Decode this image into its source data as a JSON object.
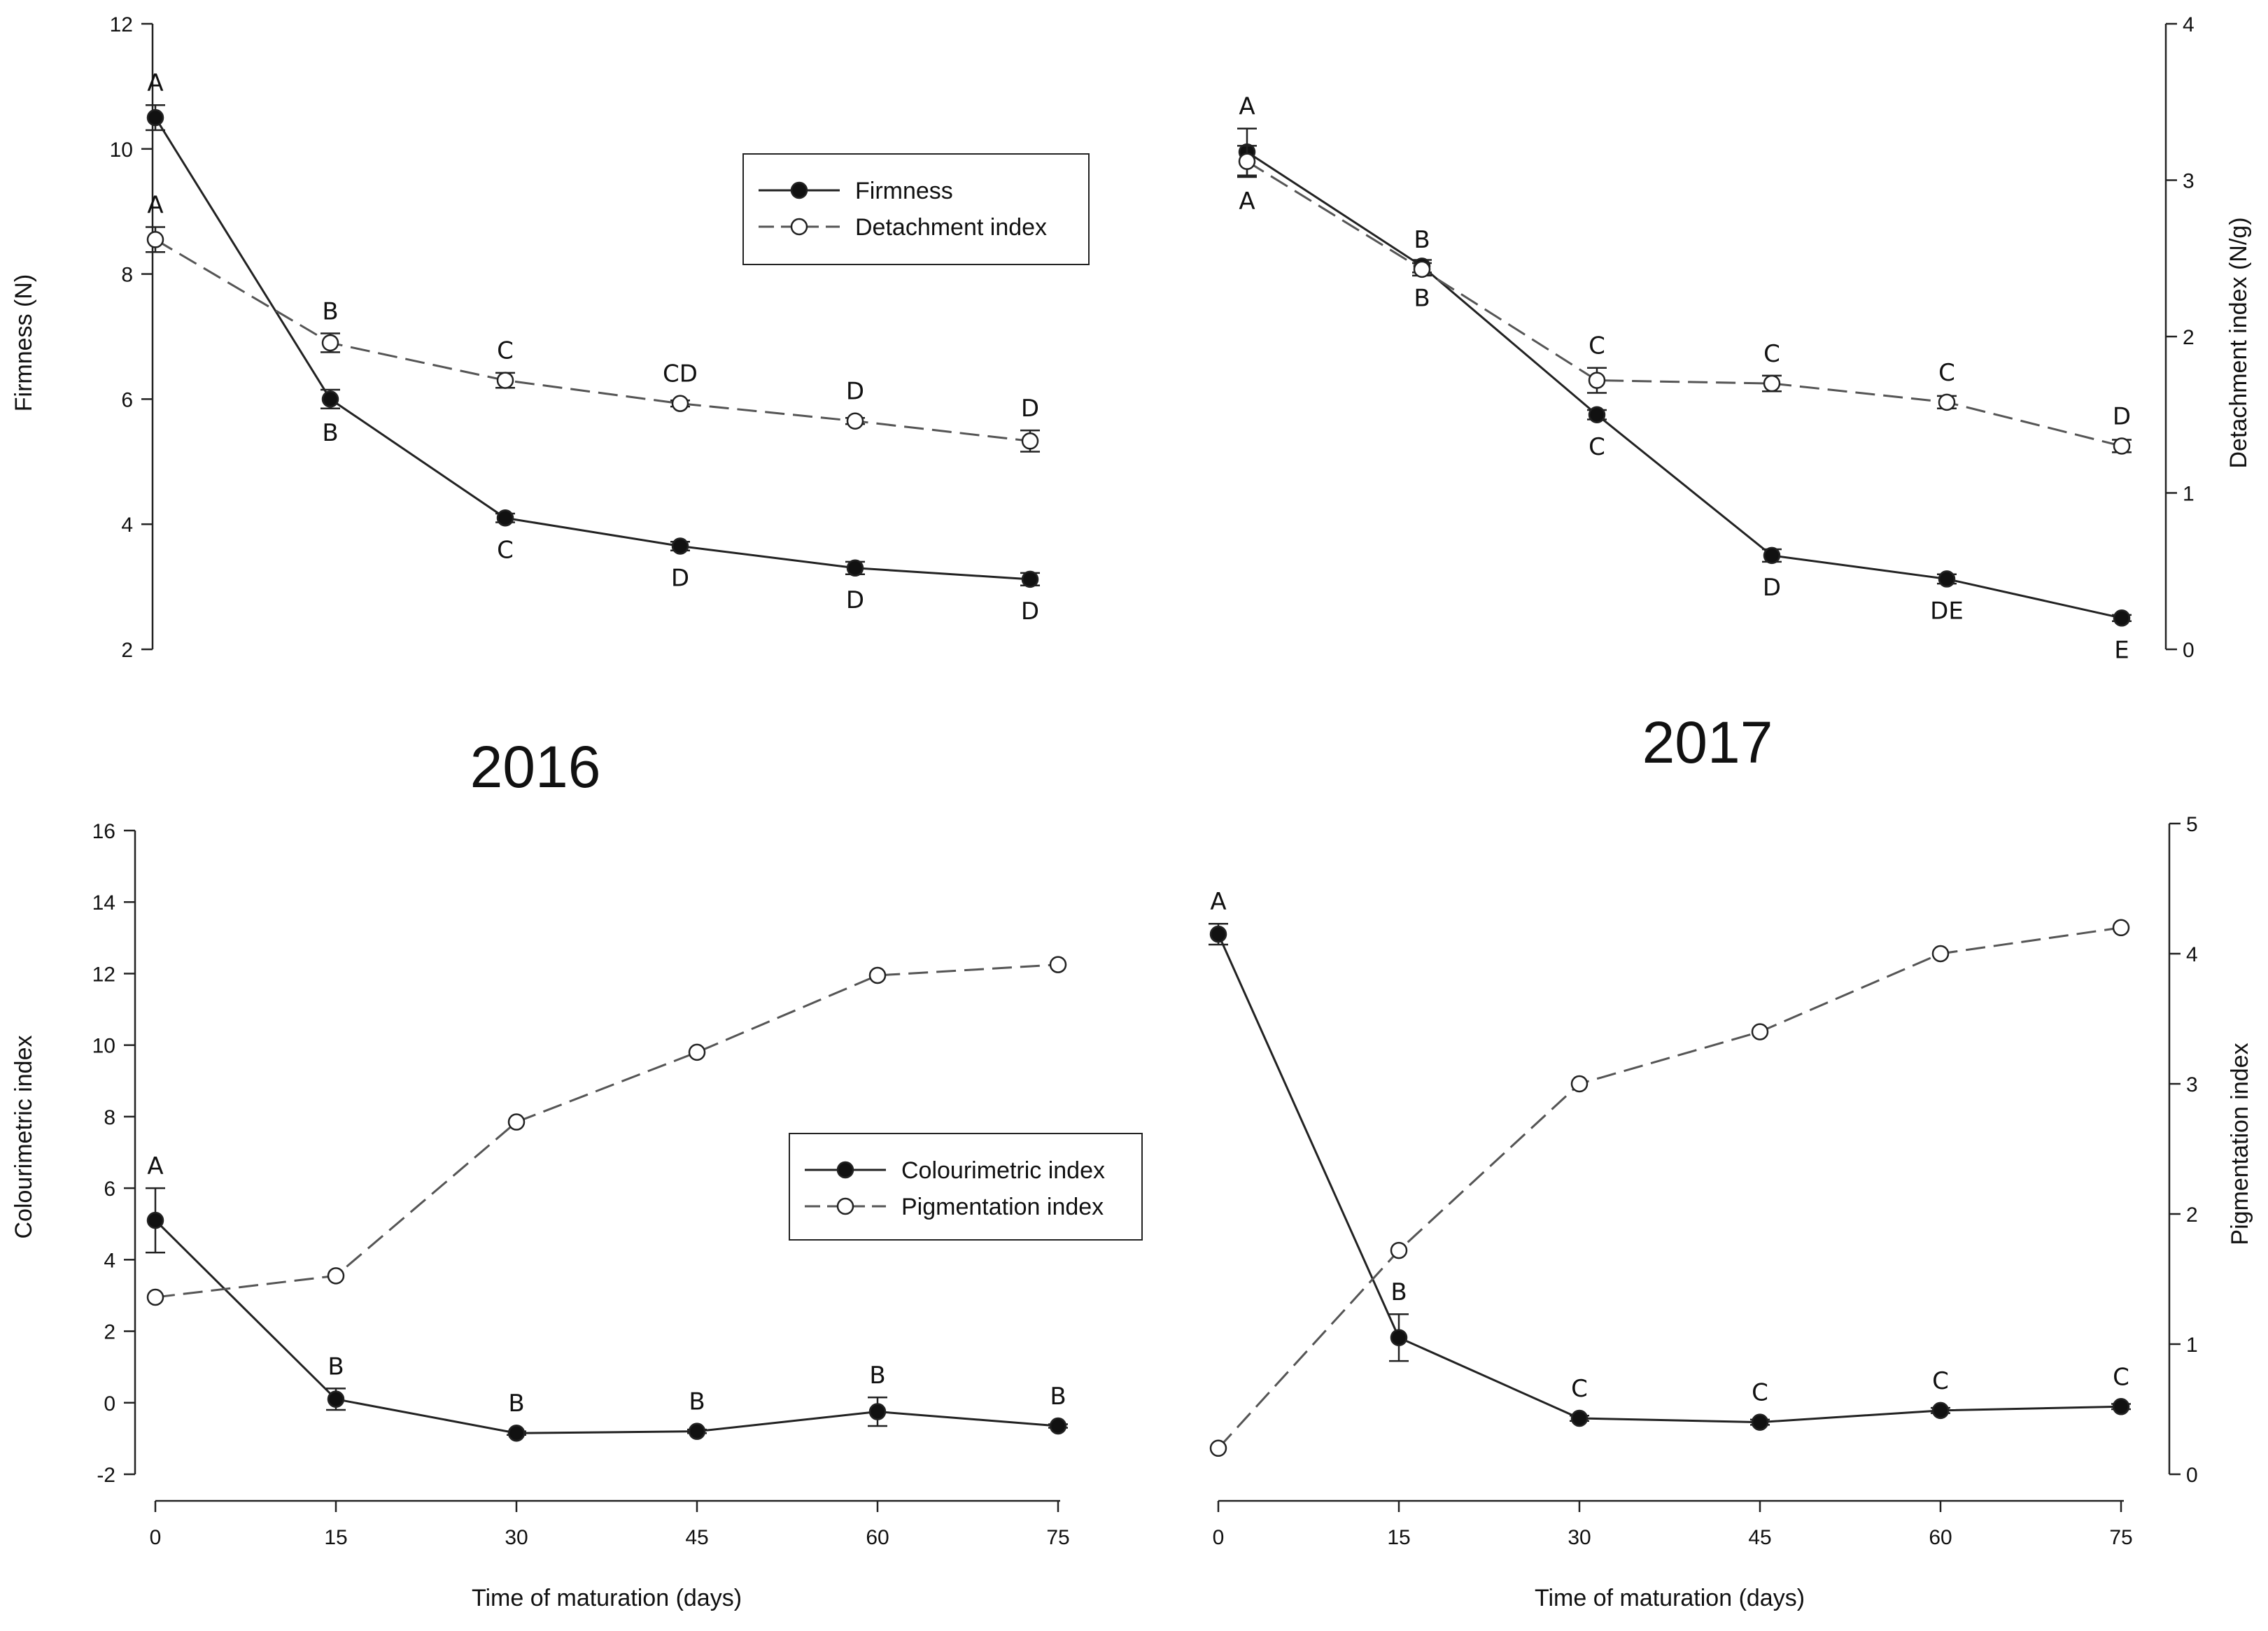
{
  "titles": {
    "left_year": "2016",
    "right_year": "2017"
  },
  "chart_data": [
    {
      "id": "p2016_top",
      "type": "line",
      "x": [
        0,
        15,
        30,
        45,
        60,
        75
      ],
      "ylabel": "Firmness (N)",
      "ylim": [
        2,
        12
      ],
      "yticks": [
        "2",
        "4",
        "6",
        "8",
        "10",
        "12"
      ],
      "series": [
        {
          "name": "Firmness",
          "axis": "left",
          "style": "solid-filled",
          "values": [
            10.5,
            6.0,
            4.1,
            3.65,
            3.3,
            3.12
          ],
          "err": [
            0.2,
            0.15,
            0.07,
            0.07,
            0.1,
            0.1
          ],
          "letters": [
            "A",
            "B",
            "C",
            "D",
            "D",
            "D"
          ],
          "letter_pos": [
            "above",
            "below",
            "below",
            "below",
            "below",
            "below"
          ]
        },
        {
          "name": "Detachment index",
          "axis": "left",
          "style": "dashed-open",
          "values": [
            8.55,
            6.9,
            6.3,
            5.93,
            5.65,
            5.33
          ],
          "err": [
            0.2,
            0.15,
            0.12,
            0.05,
            0.05,
            0.17
          ],
          "letters": [
            "A",
            "B",
            "C",
            "CD",
            "D",
            "D"
          ],
          "letter_pos": [
            "above",
            "above",
            "above",
            "above",
            "above",
            "above"
          ]
        }
      ],
      "legend": {
        "placement": "top-right",
        "entries": [
          "Firmness",
          "Detachment index"
        ]
      }
    },
    {
      "id": "p2017_top",
      "type": "line",
      "x": [
        0,
        15,
        30,
        45,
        60,
        75
      ],
      "ylabel_right": "Detachment index (N/g)",
      "ylim_right": [
        0,
        4
      ],
      "yticks_right": [
        "0",
        "1",
        "2",
        "3",
        "4"
      ],
      "series": [
        {
          "name": "Firmness",
          "axis": "right",
          "style": "solid-filled",
          "values": [
            3.18,
            2.45,
            1.5,
            0.6,
            0.45,
            0.2
          ],
          "err": [
            0.15,
            0.04,
            0.03,
            0.04,
            0.03,
            0.02
          ],
          "letters": [
            "A",
            "B",
            "C",
            "D",
            "DE",
            "E"
          ],
          "letter_pos": [
            "above",
            "below",
            "below",
            "below",
            "below",
            "below"
          ]
        },
        {
          "name": "Detachment index",
          "axis": "right",
          "style": "dashed-open",
          "values": [
            3.12,
            2.43,
            1.72,
            1.7,
            1.58,
            1.3
          ],
          "err": [
            0.1,
            0.04,
            0.08,
            0.05,
            0.04,
            0.04
          ],
          "letters": [
            "A",
            "B",
            "C",
            "C",
            "C",
            "D"
          ],
          "letter_pos": [
            "below",
            "above",
            "above",
            "above",
            "above",
            "above"
          ]
        }
      ]
    },
    {
      "id": "p2016_bottom",
      "type": "line",
      "x": [
        0,
        15,
        30,
        45,
        60,
        75
      ],
      "xlabel": "Time of maturation (days)",
      "xticks": [
        "0",
        "15",
        "30",
        "45",
        "60",
        "75"
      ],
      "ylabel": "Colourimetric index",
      "ylim": [
        -2,
        16
      ],
      "yticks": [
        "-2",
        "0",
        "2",
        "4",
        "6",
        "8",
        "10",
        "12",
        "14",
        "16"
      ],
      "series": [
        {
          "name": "Colourimetric index",
          "axis": "left",
          "style": "solid-filled",
          "values": [
            5.1,
            0.1,
            -0.85,
            -0.8,
            -0.25,
            -0.65
          ],
          "err": [
            0.9,
            0.3,
            0.05,
            0.05,
            0.4,
            0.05
          ],
          "letters": [
            "A",
            "B",
            "B",
            "B",
            "B",
            "B"
          ],
          "letter_pos": [
            "above",
            "above",
            "above",
            "above",
            "above",
            "above"
          ]
        },
        {
          "name": "Pigmentation index",
          "axis": "left",
          "style": "dashed-open",
          "values": [
            2.95,
            3.55,
            7.85,
            9.8,
            11.95,
            12.25
          ],
          "err": [
            0,
            0,
            0,
            0,
            0,
            0
          ],
          "letters": [
            "",
            "",
            "",
            "",
            "",
            ""
          ],
          "letter_pos": [
            "above",
            "above",
            "above",
            "above",
            "above",
            "above"
          ]
        }
      ],
      "legend": {
        "placement": "center-right",
        "entries": [
          "Colourimetric index",
          "Pigmentation index"
        ]
      }
    },
    {
      "id": "p2017_bottom",
      "type": "line",
      "x": [
        0,
        15,
        30,
        45,
        60,
        75
      ],
      "xlabel": "Time of maturation (days)",
      "xticks": [
        "0",
        "15",
        "30",
        "45",
        "60",
        "75"
      ],
      "ylabel_right": "Pigmentation index",
      "ylim_right": [
        0,
        5
      ],
      "yticks_right": [
        "0",
        "1",
        "2",
        "3",
        "4",
        "5"
      ],
      "series": [
        {
          "name": "Colourimetric index",
          "axis": "right",
          "style": "solid-filled",
          "values": [
            4.15,
            1.05,
            0.43,
            0.4,
            0.49,
            0.52
          ],
          "err": [
            0.08,
            0.18,
            0.02,
            0.02,
            0.02,
            0.02
          ],
          "letters": [
            "A",
            "B",
            "C",
            "C",
            "C",
            "C"
          ],
          "letter_pos": [
            "above",
            "above",
            "above",
            "above",
            "above",
            "above"
          ]
        },
        {
          "name": "Pigmentation index",
          "axis": "right",
          "style": "dashed-open",
          "values": [
            0.2,
            1.72,
            3.0,
            3.4,
            4.0,
            4.2
          ],
          "err": [
            0,
            0,
            0,
            0,
            0,
            0
          ],
          "letters": [
            "",
            "",
            "",
            "",
            "",
            ""
          ],
          "letter_pos": [
            "above",
            "above",
            "above",
            "above",
            "above",
            "above"
          ]
        }
      ]
    }
  ]
}
